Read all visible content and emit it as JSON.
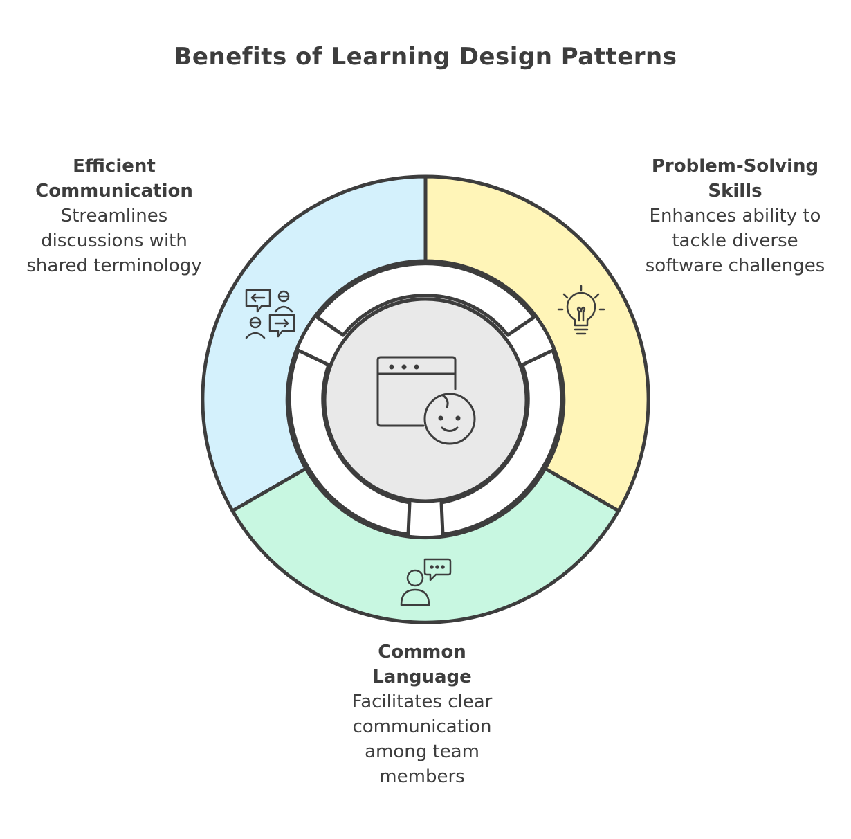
{
  "title": "Benefits of Learning Design Patterns",
  "segments": [
    {
      "id": "efficient-communication",
      "heading": "Efficient Communication",
      "description": "Streamlines discussions with shared terminology",
      "color": "#d4f1fc",
      "icon": "two-people-chat-icon"
    },
    {
      "id": "problem-solving",
      "heading": "Problem-Solving Skills",
      "description": "Enhances ability to tackle diverse software challenges",
      "color": "#fff5b8",
      "icon": "lightbulb-icon"
    },
    {
      "id": "common-language",
      "heading": "Common Language",
      "description": "Facilitates clear communication among team members",
      "color": "#c8f7e1",
      "icon": "person-speech-icon"
    }
  ],
  "center": {
    "icon": "browser-window-face-icon",
    "color": "#e9e9e9"
  },
  "stroke_color": "#3d3d3d"
}
